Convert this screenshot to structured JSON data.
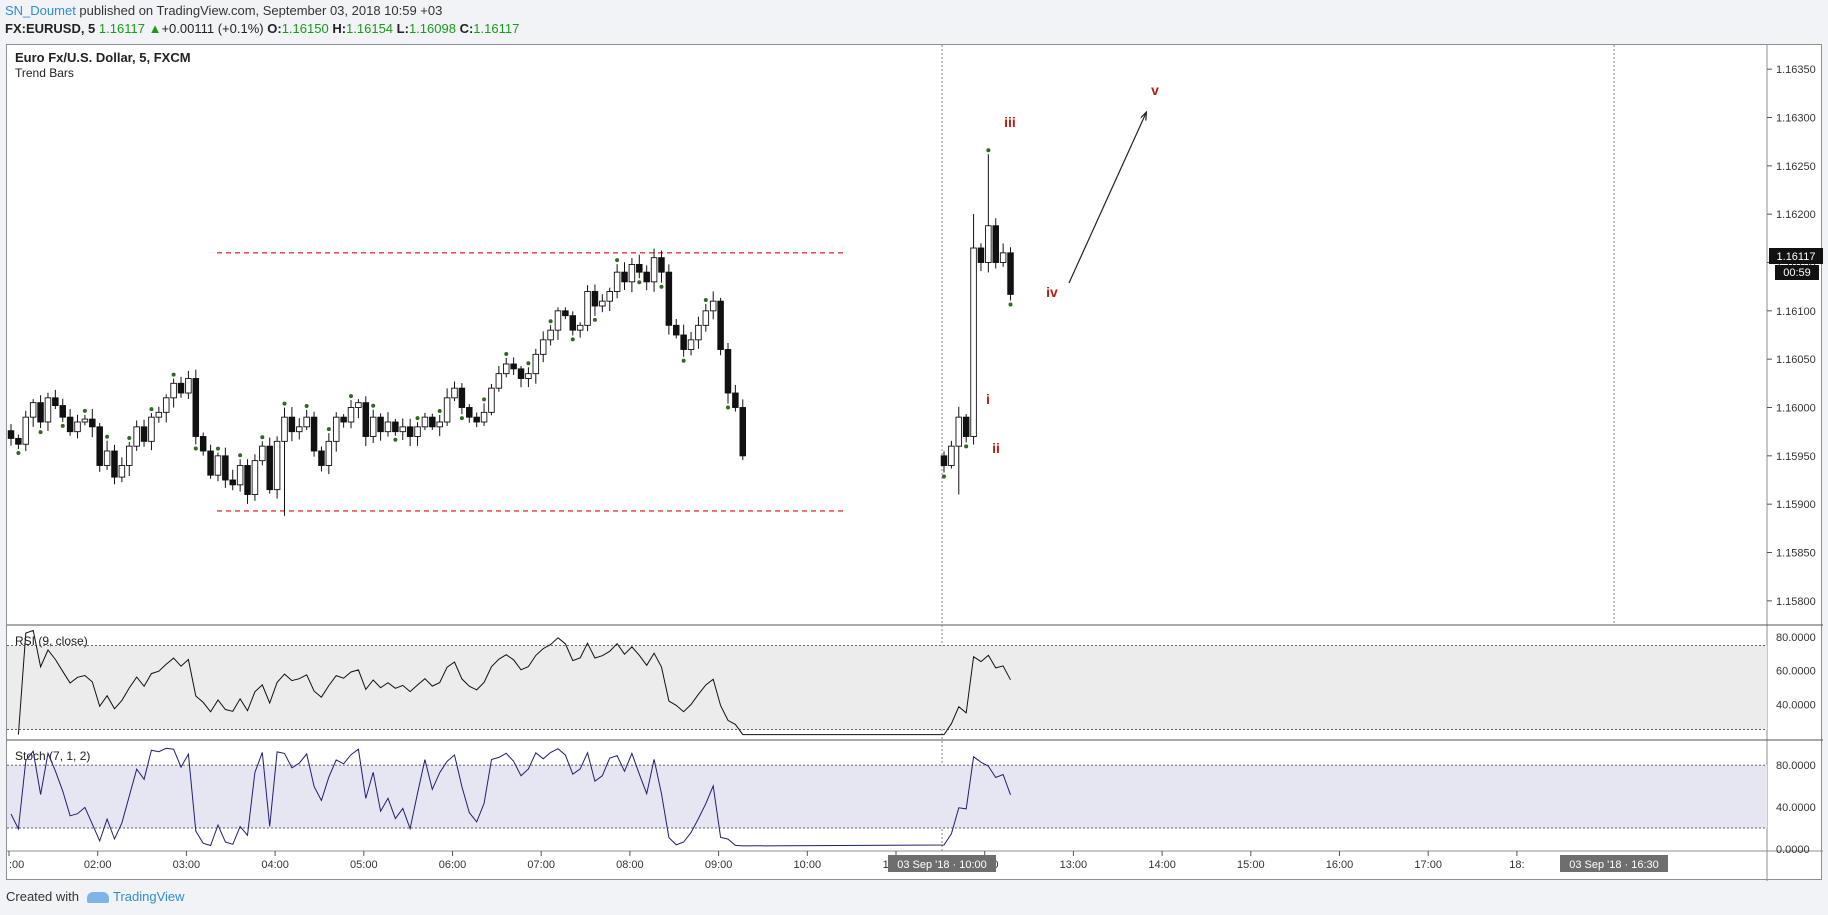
{
  "header": {
    "author": "SN_Doumet",
    "published": " published on TradingView.com, September 03, 2018 10:59 +03",
    "symbol": "FX:EURUSD, 5",
    "last": "1.16117",
    "change_arrow": "▲",
    "change": "+0.00111 (+0.1%)",
    "o_label": "O:",
    "o": "1.16150",
    "h_label": "H:",
    "h": "1.16154",
    "l_label": "L:",
    "l": "1.16098",
    "c_label": "C:",
    "c": "1.16117"
  },
  "legend": {
    "title": "Euro Fx/U.S. Dollar, 5, FXCM",
    "indicator": "Trend Bars"
  },
  "price_tag": "1.16117",
  "countdown": "00:59",
  "wave_labels": [
    "i",
    "ii",
    "iii",
    "iv",
    "v"
  ],
  "rsi_label": "RSI (9, close)",
  "stoch_label": "Stoch (7, 1, 2)",
  "time_tags": [
    "03 Sep '18 · 10:00",
    "03 Sep '18 · 16:30"
  ],
  "footer": {
    "created": "Created with",
    "brand": "TradingView"
  },
  "colors": {
    "accent": "#2e8dd8",
    "up": "#1a9b1a",
    "wave": "#b71c1c",
    "dot": "#2e6b1f",
    "level": "#e53935",
    "stoch_band": "#e6e6f2",
    "rsi_band": "#ececec"
  },
  "chart_data": [
    {
      "type": "candlestick",
      "title": "Euro Fx/U.S. Dollar, 5, FXCM",
      "x_ticks": [
        ":00",
        "02:00",
        "03:00",
        "04:00",
        "05:00",
        "06:00",
        "07:00",
        "08:00",
        "09:00",
        "10:00",
        "11:00",
        "12:00",
        "13:00",
        "14:00",
        "15:00",
        "16:00",
        "17:00",
        "18:"
      ],
      "y_ticks": [
        "1.16350",
        "1.16300",
        "1.16250",
        "1.16200",
        "1.16150",
        "1.16100",
        "1.16050",
        "1.16000",
        "1.15950",
        "1.15900",
        "1.15850",
        "1.15800"
      ],
      "ylim": [
        1.15775,
        1.16375
      ],
      "levels": [
        1.1616,
        1.15893
      ],
      "close": [
        1.15968,
        1.15962,
        1.1599,
        1.16005,
        1.15985,
        1.1601,
        1.16002,
        1.1599,
        1.15975,
        1.15985,
        1.15988,
        1.1598,
        1.1594,
        1.15955,
        1.15928,
        1.1594,
        1.1596,
        1.1598,
        1.15965,
        1.1599,
        1.15995,
        1.1601,
        1.16025,
        1.16015,
        1.1603,
        1.1597,
        1.15955,
        1.1593,
        1.1595,
        1.15925,
        1.1592,
        1.1594,
        1.1591,
        1.15945,
        1.1596,
        1.15915,
        1.15965,
        1.1599,
        1.15975,
        1.1598,
        1.1599,
        1.15955,
        1.1594,
        1.15965,
        1.1599,
        1.15985,
        1.16,
        1.16005,
        1.1597,
        1.1599,
        1.15975,
        1.15985,
        1.15975,
        1.1598,
        1.1597,
        1.1598,
        1.1599,
        1.1598,
        1.15985,
        1.1601,
        1.1602,
        1.16,
        1.1599,
        1.15985,
        1.15995,
        1.1602,
        1.16035,
        1.16045,
        1.1604,
        1.1603,
        1.16035,
        1.16055,
        1.1607,
        1.1608,
        1.161,
        1.16095,
        1.1608,
        1.16085,
        1.1612,
        1.16105,
        1.1611,
        1.1612,
        1.1614,
        1.1613,
        1.16148,
        1.1614,
        1.1613,
        1.16155,
        1.1614,
        1.16085,
        1.16075,
        1.1606,
        1.1607,
        1.16085,
        1.161,
        1.1611,
        1.1606,
        1.16015,
        1.16,
        1.1595,
        1.1594,
        1.1596,
        1.1599,
        1.1597,
        1.16165,
        1.1615,
        1.16188,
        1.1615,
        1.1616,
        1.16117
      ],
      "rsi": {
        "label": "RSI (9, close)",
        "ylim": [
          20,
          86
        ],
        "ticks": [
          "80.0000",
          "60.0000",
          "40.0000"
        ],
        "bands": [
          75,
          25
        ]
      },
      "stoch": {
        "label": "Stoch (7, 1, 2)",
        "ylim": [
          0,
          100
        ],
        "ticks": [
          "80.0000",
          "40.0000",
          "0.0000"
        ],
        "bands": [
          80,
          20
        ]
      }
    }
  ]
}
